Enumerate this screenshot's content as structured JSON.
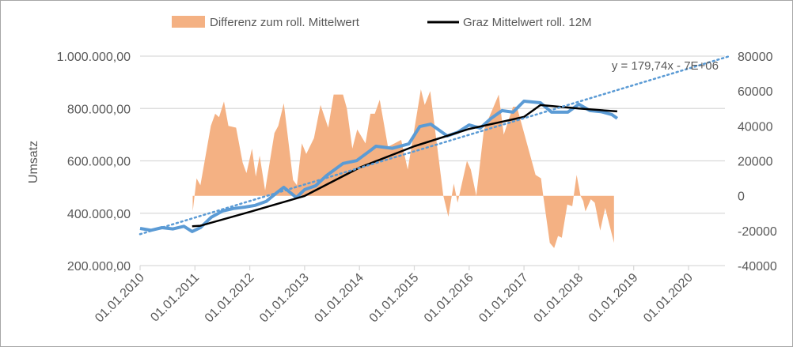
{
  "chart_data": {
    "type": "line",
    "ylabel": "Umsatz",
    "legend": {
      "position": "top",
      "entries": [
        "Differenz zum roll. Mittelwert",
        "Graz Mittelwert roll. 12M"
      ]
    },
    "grid": true,
    "x_axis": {
      "range": [
        2010,
        2020.7
      ],
      "tick_labels": [
        "01.01.2010",
        "01.01.2011",
        "01.01.2012",
        "01.01.2013",
        "01.01.2014",
        "01.01.2015",
        "01.01.2016",
        "01.01.2017",
        "01.01.2018",
        "01.01.2019",
        "01.01.2020"
      ],
      "tick_values": [
        2010,
        2011,
        2012,
        2013,
        2014,
        2015,
        2016,
        2017,
        2018,
        2019,
        2020
      ]
    },
    "y_left": {
      "range": [
        200000,
        1000000
      ],
      "tick_values": [
        200000,
        400000,
        600000,
        800000,
        1000000
      ],
      "tick_labels": [
        "200.000,00",
        "400.000,00",
        "600.000,00",
        "800.000,00",
        "1.000.000,00"
      ]
    },
    "y_right": {
      "range": [
        -40000,
        80000
      ],
      "tick_values": [
        -40000,
        -20000,
        0,
        20000,
        40000,
        60000,
        80000
      ],
      "tick_labels": [
        "-40000",
        "-20000",
        "0",
        "20000",
        "40000",
        "60000",
        "80000"
      ]
    },
    "series": [
      {
        "name": "Differenz zum roll. Mittelwert",
        "type": "area",
        "axis": "right",
        "color": "#f4b183",
        "points": [
          [
            2010.96,
            0
          ],
          [
            2010.96,
            -9000
          ],
          [
            2011.03,
            10000
          ],
          [
            2011.1,
            6000
          ],
          [
            2011.29,
            40000
          ],
          [
            2011.37,
            47000
          ],
          [
            2011.44,
            45000
          ],
          [
            2011.53,
            54000
          ],
          [
            2011.61,
            40000
          ],
          [
            2011.75,
            39000
          ],
          [
            2011.87,
            19000
          ],
          [
            2011.94,
            13000
          ],
          [
            2012.04,
            27000
          ],
          [
            2012.11,
            11000
          ],
          [
            2012.18,
            23000
          ],
          [
            2012.28,
            3000
          ],
          [
            2012.45,
            36000
          ],
          [
            2012.52,
            40000
          ],
          [
            2012.62,
            53000
          ],
          [
            2012.79,
            9000
          ],
          [
            2012.86,
            6000
          ],
          [
            2012.95,
            30000
          ],
          [
            2013.03,
            24000
          ],
          [
            2013.17,
            33000
          ],
          [
            2013.29,
            52000
          ],
          [
            2013.43,
            39000
          ],
          [
            2013.53,
            58000
          ],
          [
            2013.7,
            58000
          ],
          [
            2013.77,
            50000
          ],
          [
            2013.87,
            27000
          ],
          [
            2013.96,
            38000
          ],
          [
            2014.11,
            30000
          ],
          [
            2014.2,
            47000
          ],
          [
            2014.28,
            47000
          ],
          [
            2014.37,
            55000
          ],
          [
            2014.52,
            28000
          ],
          [
            2014.76,
            32000
          ],
          [
            2014.88,
            15000
          ],
          [
            2015.12,
            61000
          ],
          [
            2015.19,
            52000
          ],
          [
            2015.29,
            60000
          ],
          [
            2015.53,
            0
          ],
          [
            2015.62,
            -12000
          ],
          [
            2015.72,
            7000
          ],
          [
            2015.79,
            -4000
          ],
          [
            2015.96,
            20000
          ],
          [
            2016.03,
            15000
          ],
          [
            2016.13,
            0
          ],
          [
            2016.27,
            38000
          ],
          [
            2016.54,
            58000
          ],
          [
            2016.63,
            35000
          ],
          [
            2016.8,
            51000
          ],
          [
            2016.87,
            51000
          ],
          [
            2017.21,
            12000
          ],
          [
            2017.31,
            10000
          ],
          [
            2017.35,
            0
          ],
          [
            2017.47,
            -27000
          ],
          [
            2017.55,
            -30000
          ],
          [
            2017.62,
            -23000
          ],
          [
            2017.69,
            -24000
          ],
          [
            2017.79,
            -5000
          ],
          [
            2017.88,
            -6000
          ],
          [
            2017.96,
            12000
          ],
          [
            2018.03,
            0
          ],
          [
            2018.08,
            -3000
          ],
          [
            2018.12,
            -9000
          ],
          [
            2018.22,
            -2000
          ],
          [
            2018.29,
            -4000
          ],
          [
            2018.39,
            -20000
          ],
          [
            2018.48,
            -7000
          ],
          [
            2018.64,
            -27000
          ],
          [
            2018.64,
            0
          ]
        ]
      },
      {
        "name": "Umsatz",
        "type": "line",
        "axis": "left",
        "color": "#5b9bd5",
        "points": [
          [
            2010.0,
            342000
          ],
          [
            2010.2,
            335000
          ],
          [
            2010.4,
            345000
          ],
          [
            2010.6,
            340000
          ],
          [
            2010.8,
            350000
          ],
          [
            2010.95,
            330000
          ],
          [
            2011.1,
            345000
          ],
          [
            2011.3,
            385000
          ],
          [
            2011.5,
            408000
          ],
          [
            2011.7,
            418000
          ],
          [
            2011.9,
            423000
          ],
          [
            2012.1,
            430000
          ],
          [
            2012.3,
            445000
          ],
          [
            2012.5,
            480000
          ],
          [
            2012.62,
            499000
          ],
          [
            2012.85,
            460000
          ],
          [
            2013.0,
            490000
          ],
          [
            2013.2,
            505000
          ],
          [
            2013.4,
            544000
          ],
          [
            2013.7,
            590000
          ],
          [
            2013.95,
            601000
          ],
          [
            2014.2,
            640000
          ],
          [
            2014.3,
            656000
          ],
          [
            2014.6,
            648000
          ],
          [
            2014.9,
            665000
          ],
          [
            2015.1,
            731000
          ],
          [
            2015.3,
            740000
          ],
          [
            2015.6,
            695000
          ],
          [
            2015.8,
            710000
          ],
          [
            2016.0,
            737000
          ],
          [
            2016.2,
            725000
          ],
          [
            2016.4,
            762000
          ],
          [
            2016.6,
            792000
          ],
          [
            2016.8,
            786000
          ],
          [
            2017.0,
            828000
          ],
          [
            2017.3,
            822000
          ],
          [
            2017.5,
            786000
          ],
          [
            2017.8,
            786000
          ],
          [
            2018.0,
            816000
          ],
          [
            2018.2,
            792000
          ],
          [
            2018.4,
            788000
          ],
          [
            2018.6,
            777000
          ],
          [
            2018.7,
            762000
          ]
        ]
      },
      {
        "name": "Graz Mittelwert roll. 12M",
        "type": "line",
        "axis": "left",
        "color": "#000000",
        "points": [
          [
            2010.95,
            350000
          ],
          [
            2011.1,
            352000
          ],
          [
            2012.0,
            405000
          ],
          [
            2013.0,
            466000
          ],
          [
            2014.0,
            574000
          ],
          [
            2015.0,
            656000
          ],
          [
            2016.0,
            722000
          ],
          [
            2017.0,
            768000
          ],
          [
            2017.3,
            813000
          ],
          [
            2018.0,
            800000
          ],
          [
            2018.7,
            789000
          ]
        ]
      }
    ],
    "trendline": {
      "label": "y = 179,74x - 7E+06",
      "color": "#5b9bd5",
      "style": "dotted",
      "points": [
        [
          2010.0,
          320000
        ],
        [
          2020.75,
          1000000
        ]
      ]
    }
  }
}
